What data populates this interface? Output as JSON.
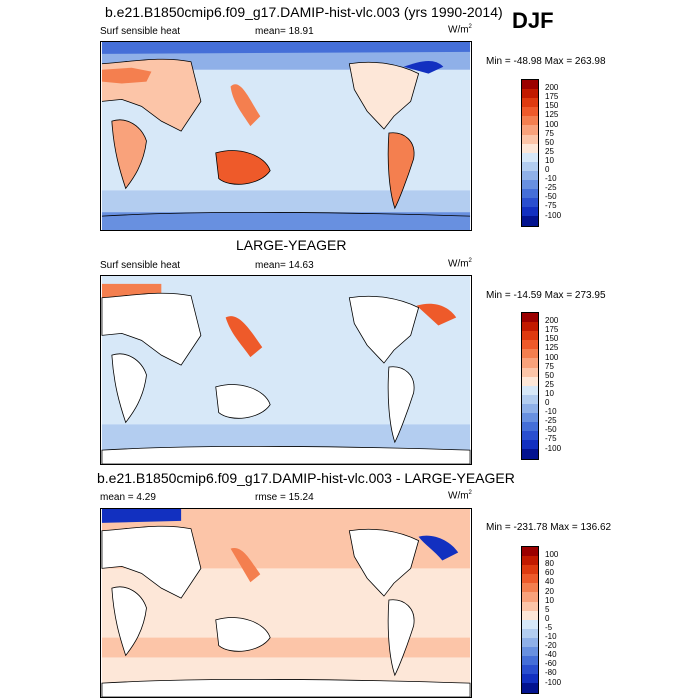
{
  "season": "DJF",
  "panels": [
    {
      "title": "b.e21.B1850cmip6.f09_g17.DAMIP-hist-vlc.003 (yrs 1990-2014)",
      "left_label": "Surf sensible heat",
      "mid_label": "mean=  18.91",
      "units": "W/m",
      "units_sup": "2",
      "minmax": "Min = -48.98 Max = 263.98",
      "levels": [
        "200",
        "175",
        "150",
        "125",
        "100",
        "75",
        "50",
        "25",
        "10",
        "0",
        "-10",
        "-25",
        "-50",
        "-75",
        "-100"
      ],
      "colors": [
        "#9b0000",
        "#c21a00",
        "#de3a0f",
        "#ee5a2a",
        "#f47f4f",
        "#f9a27b",
        "#fcc5a8",
        "#fde7d8",
        "#d7e8f8",
        "#b3cdf0",
        "#8fb0e8",
        "#6890e0",
        "#456fd8",
        "#2a4fcf",
        "#1230c0",
        "#03138f"
      ]
    },
    {
      "title": "LARGE-YEAGER",
      "left_label": "Surf sensible heat",
      "mid_label": "mean=  14.63",
      "units": "W/m",
      "units_sup": "2",
      "minmax": "Min = -14.59 Max = 273.95",
      "levels": [
        "200",
        "175",
        "150",
        "125",
        "100",
        "75",
        "50",
        "25",
        "10",
        "0",
        "-10",
        "-25",
        "-50",
        "-75",
        "-100"
      ],
      "colors": [
        "#9b0000",
        "#c21a00",
        "#de3a0f",
        "#ee5a2a",
        "#f47f4f",
        "#f9a27b",
        "#fcc5a8",
        "#fde7d8",
        "#d7e8f8",
        "#b3cdf0",
        "#8fb0e8",
        "#6890e0",
        "#456fd8",
        "#2a4fcf",
        "#1230c0",
        "#03138f"
      ]
    },
    {
      "title": "b.e21.B1850cmip6.f09_g17.DAMIP-hist-vlc.003 - LARGE-YEAGER",
      "left_label": "mean =   4.29",
      "mid_label": "rmse =  15.24",
      "units": "W/m",
      "units_sup": "2",
      "minmax": "Min = -231.78 Max = 136.62",
      "levels": [
        "100",
        "80",
        "60",
        "40",
        "20",
        "10",
        "5",
        "0",
        "-5",
        "-10",
        "-20",
        "-40",
        "-60",
        "-80",
        "-100"
      ],
      "colors": [
        "#9b0000",
        "#c21a00",
        "#de3a0f",
        "#ee5a2a",
        "#f47f4f",
        "#f9a27b",
        "#fcc5a8",
        "#fde7d8",
        "#d7e8f8",
        "#b3cdf0",
        "#8fb0e8",
        "#6890e0",
        "#456fd8",
        "#2a4fcf",
        "#1230c0",
        "#03138f"
      ]
    }
  ]
}
